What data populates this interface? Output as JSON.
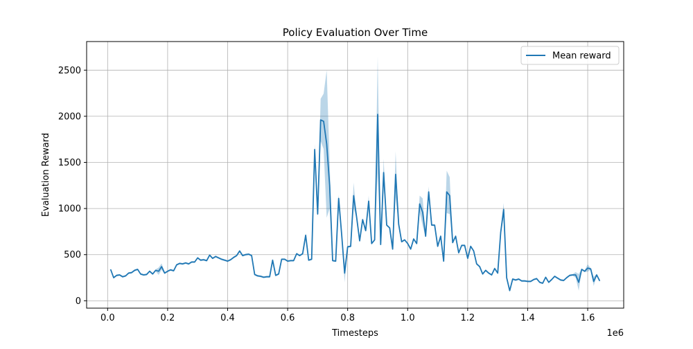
{
  "chart_data": {
    "type": "line",
    "title": "Policy Evaluation Over Time",
    "xlabel": "Timesteps",
    "ylabel": "Evaluation Reward",
    "x_offset_label": "1e6",
    "xlim": [
      -0.07,
      1.72
    ],
    "ylim": [
      -80,
      2810
    ],
    "x_ticks": [
      0.0,
      0.2,
      0.4,
      0.6,
      0.8,
      1.0,
      1.2,
      1.4,
      1.6
    ],
    "x_tick_labels": [
      "0.0",
      "0.2",
      "0.4",
      "0.6",
      "0.8",
      "1.0",
      "1.2",
      "1.4",
      "1.6"
    ],
    "y_ticks": [
      0,
      500,
      1000,
      1500,
      2000,
      2500
    ],
    "y_tick_labels": [
      "0",
      "500",
      "1000",
      "1500",
      "2000",
      "2500"
    ],
    "grid": true,
    "legend_position": "top-right",
    "colors": {
      "line": "#1f77b4",
      "band": "#1f77b4"
    },
    "series": [
      {
        "name": "Mean reward",
        "points": [
          [
            0.01,
            340
          ],
          [
            0.02,
            250
          ],
          [
            0.03,
            275
          ],
          [
            0.04,
            280
          ],
          [
            0.05,
            260
          ],
          [
            0.06,
            270
          ],
          [
            0.07,
            300
          ],
          [
            0.08,
            305
          ],
          [
            0.09,
            330
          ],
          [
            0.1,
            340
          ],
          [
            0.11,
            290
          ],
          [
            0.12,
            280
          ],
          [
            0.13,
            285
          ],
          [
            0.14,
            320
          ],
          [
            0.15,
            290
          ],
          [
            0.16,
            330
          ],
          [
            0.17,
            320
          ],
          [
            0.18,
            370
          ],
          [
            0.19,
            300
          ],
          [
            0.2,
            320
          ],
          [
            0.21,
            335
          ],
          [
            0.22,
            325
          ],
          [
            0.23,
            390
          ],
          [
            0.24,
            405
          ],
          [
            0.25,
            400
          ],
          [
            0.26,
            410
          ],
          [
            0.27,
            400
          ],
          [
            0.28,
            420
          ],
          [
            0.29,
            420
          ],
          [
            0.3,
            465
          ],
          [
            0.31,
            440
          ],
          [
            0.32,
            445
          ],
          [
            0.33,
            435
          ],
          [
            0.34,
            495
          ],
          [
            0.35,
            460
          ],
          [
            0.36,
            480
          ],
          [
            0.37,
            465
          ],
          [
            0.38,
            450
          ],
          [
            0.39,
            440
          ],
          [
            0.4,
            430
          ],
          [
            0.41,
            445
          ],
          [
            0.42,
            470
          ],
          [
            0.43,
            490
          ],
          [
            0.44,
            540
          ],
          [
            0.45,
            490
          ],
          [
            0.46,
            500
          ],
          [
            0.47,
            505
          ],
          [
            0.48,
            490
          ],
          [
            0.49,
            285
          ],
          [
            0.5,
            270
          ],
          [
            0.51,
            265
          ],
          [
            0.52,
            255
          ],
          [
            0.53,
            260
          ],
          [
            0.54,
            260
          ],
          [
            0.55,
            440
          ],
          [
            0.56,
            275
          ],
          [
            0.57,
            290
          ],
          [
            0.58,
            450
          ],
          [
            0.59,
            450
          ],
          [
            0.6,
            430
          ],
          [
            0.61,
            435
          ],
          [
            0.62,
            435
          ],
          [
            0.63,
            510
          ],
          [
            0.64,
            490
          ],
          [
            0.65,
            510
          ],
          [
            0.66,
            710
          ],
          [
            0.67,
            440
          ],
          [
            0.68,
            450
          ],
          [
            0.69,
            1640
          ],
          [
            0.7,
            940
          ],
          [
            0.71,
            1960
          ],
          [
            0.72,
            1945
          ],
          [
            0.73,
            1700
          ],
          [
            0.74,
            1250
          ],
          [
            0.75,
            435
          ],
          [
            0.76,
            430
          ],
          [
            0.77,
            1110
          ],
          [
            0.78,
            720
          ],
          [
            0.79,
            300
          ],
          [
            0.8,
            585
          ],
          [
            0.81,
            590
          ],
          [
            0.82,
            1140
          ],
          [
            0.83,
            900
          ],
          [
            0.84,
            650
          ],
          [
            0.85,
            880
          ],
          [
            0.86,
            760
          ],
          [
            0.87,
            1080
          ],
          [
            0.88,
            620
          ],
          [
            0.89,
            660
          ],
          [
            0.9,
            2020
          ],
          [
            0.91,
            610
          ],
          [
            0.92,
            1390
          ],
          [
            0.93,
            820
          ],
          [
            0.94,
            790
          ],
          [
            0.95,
            560
          ],
          [
            0.96,
            1370
          ],
          [
            0.97,
            830
          ],
          [
            0.98,
            640
          ],
          [
            0.99,
            660
          ],
          [
            1.0,
            620
          ],
          [
            1.01,
            560
          ],
          [
            1.02,
            670
          ],
          [
            1.03,
            620
          ],
          [
            1.04,
            1050
          ],
          [
            1.05,
            960
          ],
          [
            1.06,
            700
          ],
          [
            1.07,
            1180
          ],
          [
            1.08,
            820
          ],
          [
            1.09,
            820
          ],
          [
            1.1,
            590
          ],
          [
            1.11,
            700
          ],
          [
            1.12,
            430
          ],
          [
            1.13,
            1180
          ],
          [
            1.14,
            1140
          ],
          [
            1.15,
            630
          ],
          [
            1.16,
            700
          ],
          [
            1.17,
            520
          ],
          [
            1.18,
            600
          ],
          [
            1.19,
            600
          ],
          [
            1.2,
            460
          ],
          [
            1.21,
            590
          ],
          [
            1.22,
            540
          ],
          [
            1.23,
            400
          ],
          [
            1.24,
            370
          ],
          [
            1.25,
            290
          ],
          [
            1.26,
            330
          ],
          [
            1.27,
            300
          ],
          [
            1.28,
            280
          ],
          [
            1.29,
            350
          ],
          [
            1.3,
            300
          ],
          [
            1.31,
            740
          ],
          [
            1.32,
            990
          ],
          [
            1.33,
            250
          ],
          [
            1.34,
            110
          ],
          [
            1.35,
            235
          ],
          [
            1.36,
            225
          ],
          [
            1.37,
            235
          ],
          [
            1.38,
            215
          ],
          [
            1.39,
            215
          ],
          [
            1.4,
            210
          ],
          [
            1.41,
            210
          ],
          [
            1.42,
            230
          ],
          [
            1.43,
            240
          ],
          [
            1.44,
            200
          ],
          [
            1.45,
            190
          ],
          [
            1.46,
            255
          ],
          [
            1.47,
            200
          ],
          [
            1.48,
            230
          ],
          [
            1.49,
            265
          ],
          [
            1.5,
            245
          ],
          [
            1.51,
            225
          ],
          [
            1.52,
            220
          ],
          [
            1.53,
            250
          ],
          [
            1.54,
            275
          ],
          [
            1.55,
            280
          ],
          [
            1.56,
            280
          ],
          [
            1.57,
            200
          ],
          [
            1.58,
            340
          ],
          [
            1.59,
            320
          ],
          [
            1.6,
            355
          ],
          [
            1.61,
            345
          ],
          [
            1.62,
            210
          ],
          [
            1.63,
            280
          ],
          [
            1.64,
            215
          ]
        ],
        "band_half_width": [
          [
            0.17,
            40
          ],
          [
            0.18,
            35
          ],
          [
            0.66,
            25
          ],
          [
            0.69,
            60
          ],
          [
            0.7,
            40
          ],
          [
            0.71,
            230
          ],
          [
            0.72,
            300
          ],
          [
            0.73,
            800
          ],
          [
            0.74,
            250
          ],
          [
            0.77,
            40
          ],
          [
            0.79,
            100
          ],
          [
            0.82,
            140
          ],
          [
            0.87,
            60
          ],
          [
            0.9,
            630
          ],
          [
            0.92,
            150
          ],
          [
            0.96,
            250
          ],
          [
            1.04,
            90
          ],
          [
            1.05,
            150
          ],
          [
            1.07,
            60
          ],
          [
            1.13,
            230
          ],
          [
            1.14,
            200
          ],
          [
            1.31,
            40
          ],
          [
            1.32,
            70
          ],
          [
            1.56,
            30
          ],
          [
            1.57,
            90
          ],
          [
            1.6,
            40
          ],
          [
            1.62,
            50
          ]
        ]
      }
    ]
  }
}
